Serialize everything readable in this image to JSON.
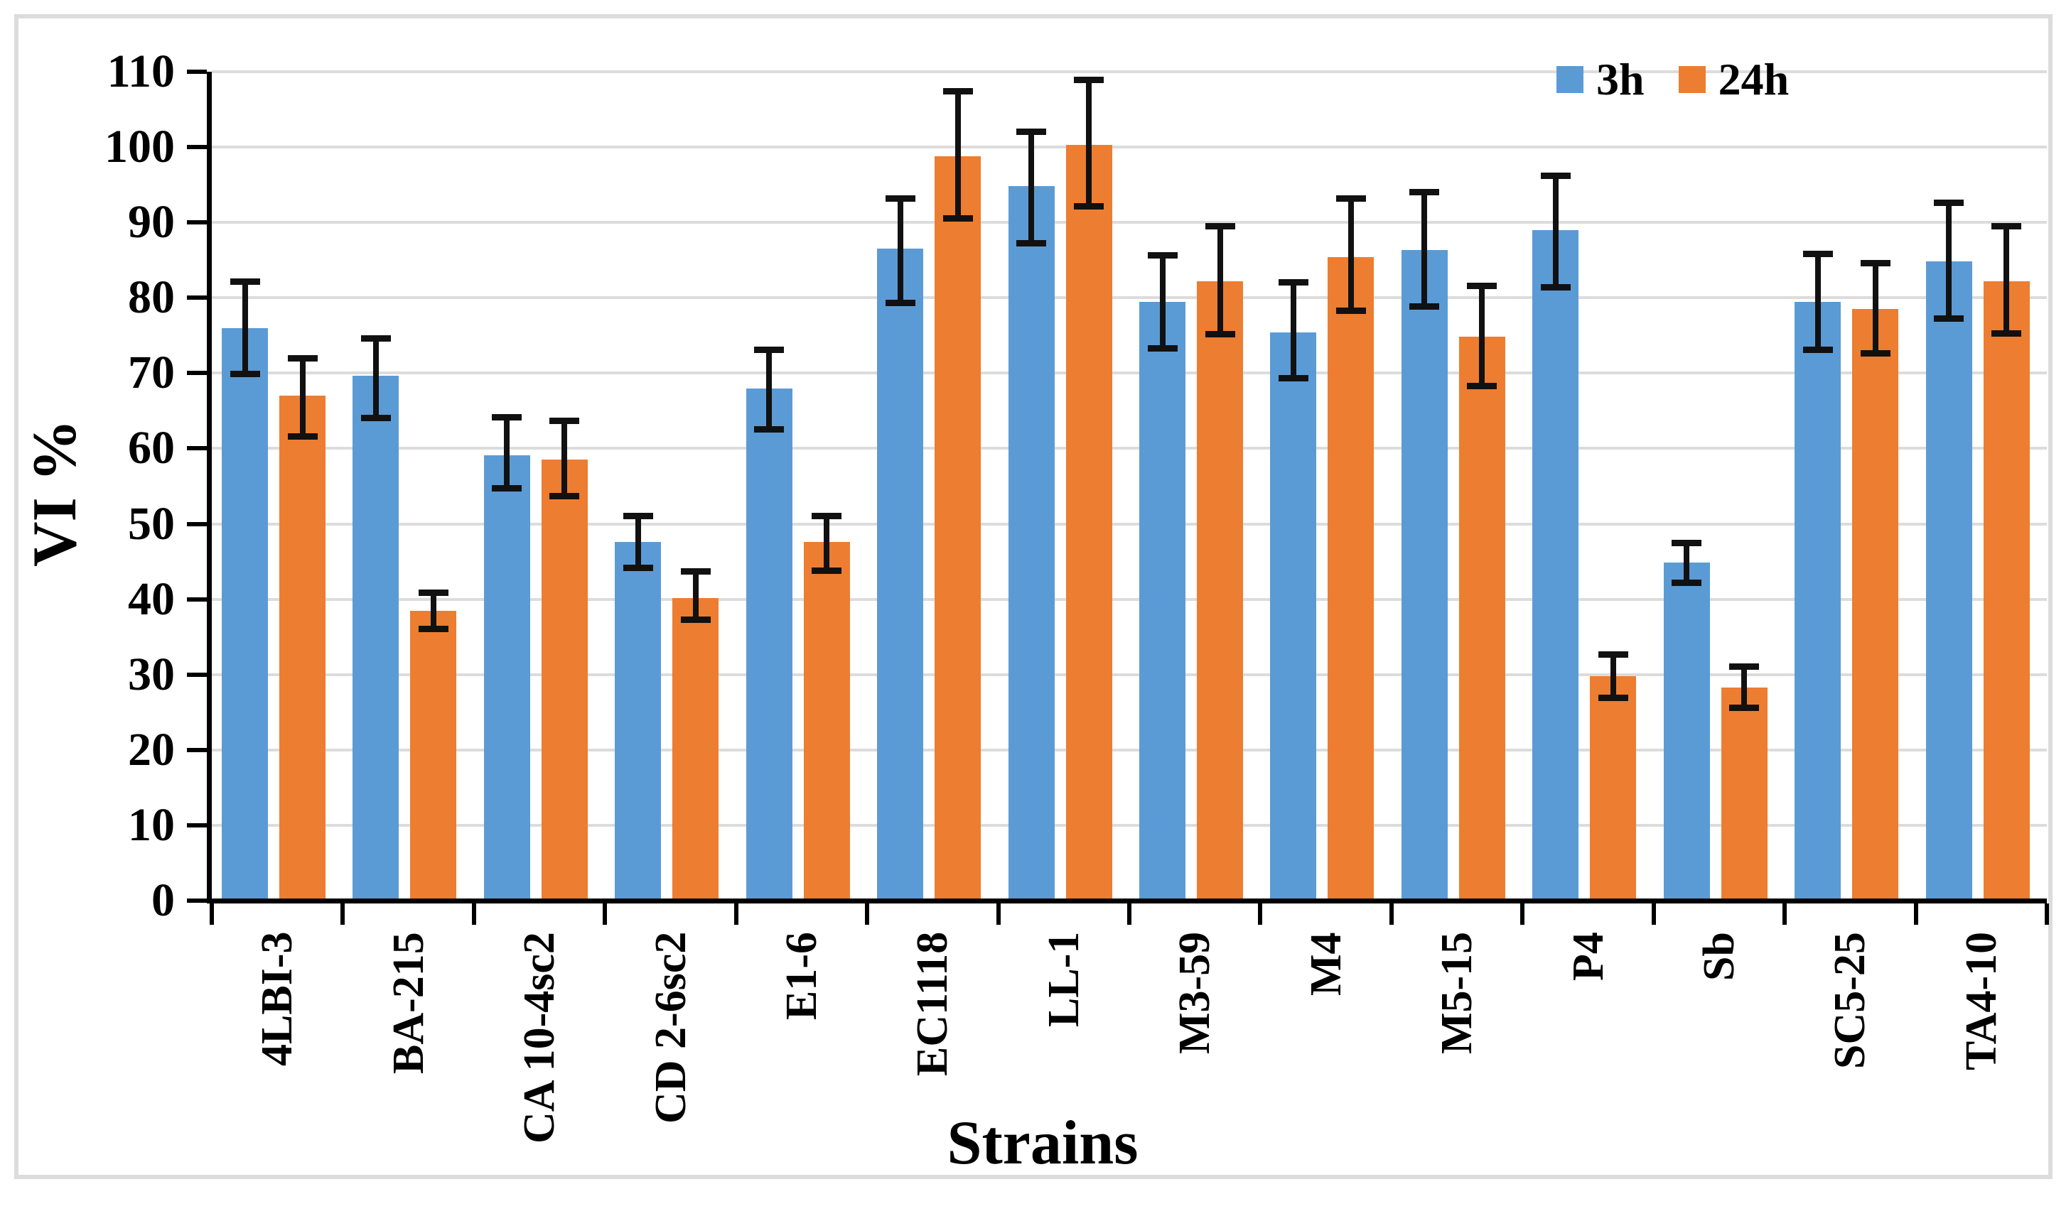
{
  "chart_data": {
    "type": "bar",
    "title": "",
    "xlabel": "Strains",
    "ylabel": "VI %",
    "ylim": [
      0,
      110
    ],
    "ytick_step": 10,
    "grid": true,
    "legend_position": "top-right",
    "error_bars": true,
    "categories": [
      "4LBI-3",
      "BA-215",
      "CA 10-4sc2",
      "CD 2-6sc2",
      "E1-6",
      "EC1118",
      "LL-1",
      "M3-59",
      "M4",
      "M5-15",
      "P4",
      "Sb",
      "SC5-25",
      "TA4-10"
    ],
    "series": [
      {
        "name": "3h",
        "color": "#5B9BD5",
        "values": [
          76.0,
          69.7,
          59.1,
          47.6,
          68.0,
          86.5,
          94.8,
          79.5,
          75.4,
          86.3,
          89.0,
          44.9,
          79.5,
          84.8
        ],
        "err_top": [
          82.2,
          74.7,
          64.2,
          51.1,
          73.1,
          93.2,
          102.1,
          85.7,
          82.1,
          94.1,
          96.2,
          47.5,
          85.9,
          92.7
        ],
        "err_bottom": [
          69.9,
          64.1,
          54.8,
          44.2,
          62.6,
          79.4,
          87.3,
          73.3,
          69.4,
          78.9,
          81.4,
          42.2,
          73.1,
          77.3
        ]
      },
      {
        "name": "24h",
        "color": "#ED7D31",
        "values": [
          67.0,
          38.5,
          58.5,
          40.2,
          47.6,
          98.8,
          100.3,
          82.2,
          85.4,
          74.8,
          29.8,
          28.3,
          78.5,
          82.2
        ],
        "err_top": [
          72.0,
          40.9,
          63.7,
          43.7,
          51.1,
          107.5,
          109.0,
          89.5,
          93.2,
          81.6,
          32.7,
          31.1,
          84.6,
          89.5
        ],
        "err_bottom": [
          61.6,
          36.1,
          53.7,
          37.3,
          43.8,
          90.6,
          92.2,
          75.2,
          78.3,
          68.3,
          27.0,
          25.6,
          72.7,
          75.3
        ]
      }
    ]
  },
  "colors": {
    "background": "#FFFFFF",
    "figure_border": "#DCDCDC",
    "gridline": "#DCDCDC",
    "axis": "#000000",
    "error_bar": "#111111",
    "text": "#000000"
  }
}
